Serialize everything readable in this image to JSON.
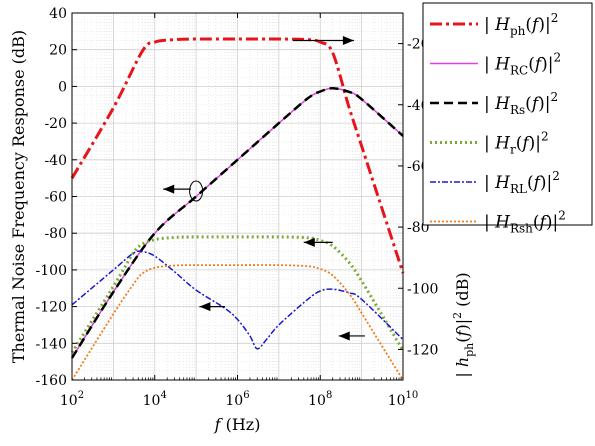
{
  "chart_data": {
    "type": "line",
    "xscale": "log",
    "xlim": [
      100,
      10000000000
    ],
    "ylim_left": [
      -160,
      40
    ],
    "ylim_right": [
      -130,
      -10
    ],
    "grid": true,
    "xlabel": {
      "var": "f",
      "unit": "(Hz)"
    },
    "ylabel_left": "Thermal Noise Frequency Response (dB)",
    "ylabel_right": {
      "pre": "|",
      "var": "h",
      "sub": "ph",
      "mid": "(",
      "arg": "f",
      "post": ")|",
      "sup": "2",
      "unit": "(dB)"
    },
    "x_ticks": [
      {
        "base": "10",
        "exp": "2",
        "value": 100
      },
      {
        "base": "10",
        "exp": "4",
        "value": 10000
      },
      {
        "base": "10",
        "exp": "6",
        "value": 1000000
      },
      {
        "base": "10",
        "exp": "8",
        "value": 100000000
      },
      {
        "base": "10",
        "exp": "10",
        "value": 10000000000
      }
    ],
    "y_ticks_left": [
      "40",
      "20",
      "0",
      "-20",
      "-40",
      "-60",
      "-80",
      "-100",
      "-120",
      "-140",
      "-160"
    ],
    "y_ticks_right": [
      "-20",
      "-40",
      "-60",
      "-80",
      "-100",
      "-120"
    ],
    "legend_position": "right-outside",
    "series": [
      {
        "name": {
          "var": "H",
          "sub": "ph"
        },
        "axis": "right",
        "color": "#e8141c",
        "dash": "12,4,3,4",
        "width": 3,
        "x": [
          100,
          1000,
          5000,
          10000,
          30000,
          100000,
          1000000,
          10000000,
          50000000,
          100000000,
          200000000,
          500000000,
          1000000000,
          10000000000
        ],
        "y": [
          -64,
          -41,
          -22.5,
          -19.5,
          -18.7,
          -18.5,
          -18.5,
          -18.5,
          -18.7,
          -19.5,
          -23,
          -41,
          -53.5,
          -95
        ]
      },
      {
        "name": {
          "var": "H",
          "sub": "RC"
        },
        "axis": "left",
        "color": "#e040e0",
        "dash": "",
        "width": 1.5,
        "x": [
          100,
          1000,
          10000,
          100000,
          1000000,
          10000000,
          50000000,
          100000000,
          200000000,
          500000000,
          1000000000,
          10000000000
        ],
        "y": [
          -148,
          -112,
          -80,
          -60,
          -40,
          -20,
          -6.5,
          -2.8,
          -1,
          -3,
          -7,
          -27
        ]
      },
      {
        "name": {
          "var": "H",
          "sub": "Rs"
        },
        "axis": "left",
        "color": "#000000",
        "dash": "9,5",
        "width": 2.5,
        "x": [
          100,
          1000,
          10000,
          100000,
          1000000,
          10000000,
          50000000,
          100000000,
          200000000,
          500000000,
          1000000000,
          10000000000
        ],
        "y": [
          -148,
          -112,
          -80,
          -60,
          -40,
          -20,
          -6.5,
          -2.8,
          -1,
          -3,
          -7,
          -27
        ]
      },
      {
        "name": {
          "var": "H",
          "sub": "r"
        },
        "axis": "left",
        "color": "#7caa35",
        "dash": "2,3",
        "width": 3,
        "x": [
          100,
          1000,
          3000,
          5000,
          10000,
          30000,
          100000,
          1000000,
          10000000,
          50000000,
          100000000,
          200000000,
          500000000,
          1000000000,
          3000000000,
          10000000000
        ],
        "y": [
          -145,
          -109,
          -91,
          -86,
          -83.5,
          -82.3,
          -82,
          -82,
          -82,
          -82.5,
          -84,
          -87,
          -96,
          -106,
          -124,
          -144
        ]
      },
      {
        "name": {
          "var": "H",
          "sub": "RL"
        },
        "axis": "left",
        "color": "#1a1acc",
        "dash": "6,2,2,2",
        "width": 1.5,
        "x": [
          100,
          1000,
          3000,
          5000,
          10000,
          30000,
          100000,
          500000,
          1000000,
          2000000,
          3000000,
          5000000,
          10000000,
          50000000,
          100000000,
          200000000,
          500000000,
          1000000000,
          10000000000
        ],
        "y": [
          -119,
          -100,
          -91,
          -90,
          -92.5,
          -101,
          -111,
          -121,
          -127,
          -136,
          -143,
          -138,
          -130,
          -116,
          -111.5,
          -110.5,
          -112.5,
          -116,
          -138
        ]
      },
      {
        "name": {
          "var": "H",
          "sub": "Rsh"
        },
        "axis": "left",
        "color": "#f07d1a",
        "dash": "2,2",
        "width": 1.8,
        "x": [
          100,
          1000,
          3000,
          5000,
          10000,
          30000,
          100000,
          1000000,
          10000000,
          50000000,
          100000000,
          200000000,
          500000000,
          1000000000,
          3000000000,
          10000000000
        ],
        "y": [
          -160,
          -124,
          -108,
          -102,
          -98.8,
          -97.6,
          -97.4,
          -97.4,
          -97.4,
          -98,
          -99.5,
          -103,
          -113,
          -123.5,
          -141,
          -160
        ]
      }
    ],
    "annotations": [
      {
        "type": "arrow",
        "from": [
          22000000,
          -19
        ],
        "to": [
          650000000,
          -19
        ],
        "axis": "right"
      },
      {
        "type": "arrow",
        "from": [
          75000,
          -56
        ],
        "to": [
          16000,
          -56
        ],
        "axis": "left"
      },
      {
        "type": "ellipse",
        "at": [
          100000,
          -57
        ],
        "axis": "left"
      },
      {
        "type": "arrow",
        "from": [
          200000000,
          -85
        ],
        "to": [
          40000000,
          -85
        ],
        "axis": "left"
      },
      {
        "type": "arrow",
        "from": [
          500000,
          -120
        ],
        "to": [
          120000,
          -120
        ],
        "axis": "left"
      },
      {
        "type": "arrow",
        "from": [
          1200000000,
          -136
        ],
        "to": [
          280000000,
          -136
        ],
        "axis": "left"
      }
    ]
  }
}
